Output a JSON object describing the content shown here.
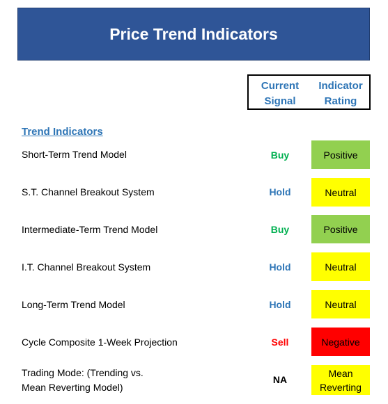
{
  "title": "Price Trend Indicators",
  "headers": {
    "signal": [
      "Current",
      "Signal"
    ],
    "rating": [
      "Indicator",
      "Rating"
    ]
  },
  "section": "Trend Indicators",
  "colors": {
    "banner": "#2f5597",
    "header_text": "#2e75b6",
    "buy": "#00b050",
    "hold": "#2e75b6",
    "sell": "#ff0000",
    "na": "#000000",
    "positive": "#92d050",
    "neutral": "#ffff00",
    "negative": "#ff0000",
    "mean_reverting": "#ffff00"
  },
  "rows": [
    {
      "label": "Short-Term Trend Model",
      "signal": "Buy",
      "rating": "Positive"
    },
    {
      "label": "S.T. Channel Breakout System",
      "signal": "Hold",
      "rating": "Neutral"
    },
    {
      "label": "Intermediate-Term Trend Model",
      "signal": "Buy",
      "rating": "Positive"
    },
    {
      "label": "I.T. Channel Breakout System",
      "signal": "Hold",
      "rating": "Neutral"
    },
    {
      "label": "Long-Term Trend Model",
      "signal": "Hold",
      "rating": "Neutral"
    },
    {
      "label": "Cycle Composite 1-Week Projection",
      "signal": "Sell",
      "rating": "Negative"
    },
    {
      "label_lines": [
        "Trading Mode: (Trending vs.",
        "Mean Reverting Model)"
      ],
      "signal": "NA",
      "rating_lines": [
        "Mean",
        "Reverting"
      ]
    }
  ]
}
